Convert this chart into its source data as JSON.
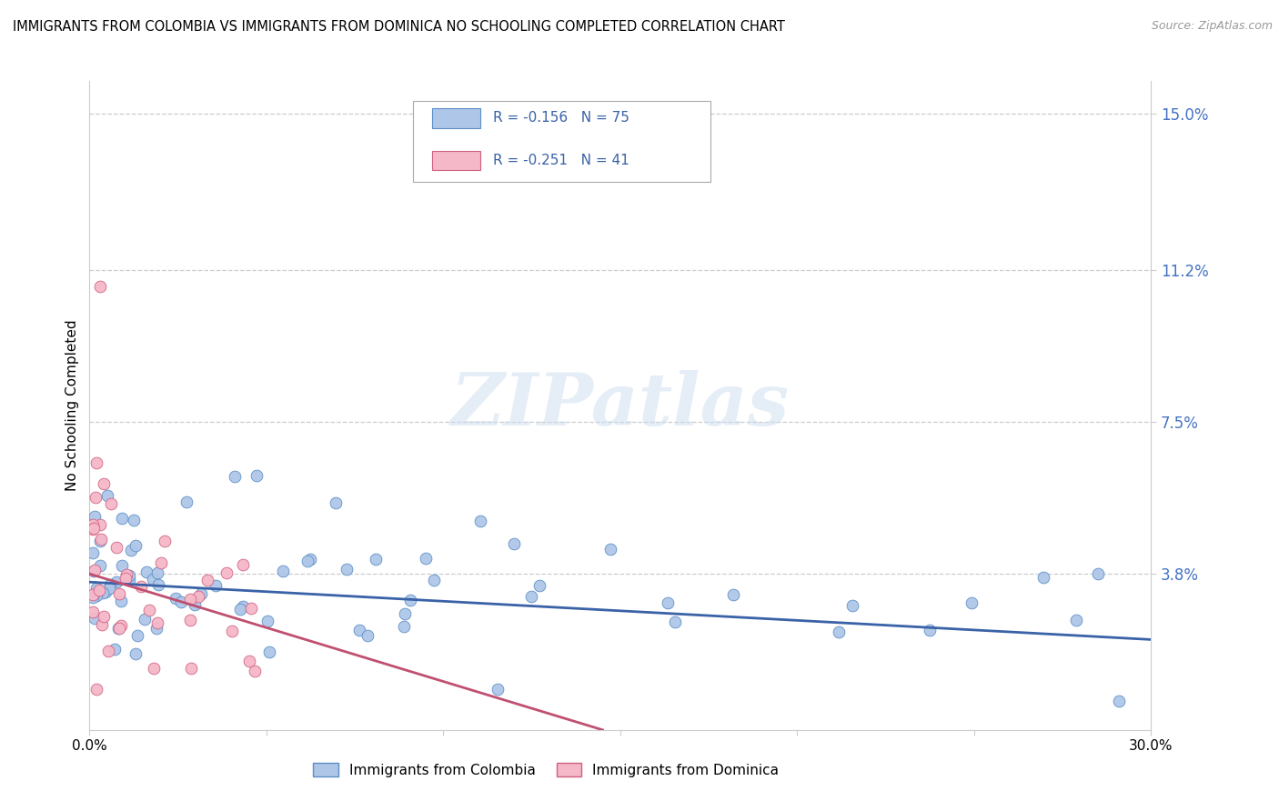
{
  "title": "IMMIGRANTS FROM COLOMBIA VS IMMIGRANTS FROM DOMINICA NO SCHOOLING COMPLETED CORRELATION CHART",
  "source": "Source: ZipAtlas.com",
  "ylabel": "No Schooling Completed",
  "xlim": [
    0.0,
    0.3
  ],
  "ylim": [
    0.0,
    0.158
  ],
  "yticks": [
    0.038,
    0.075,
    0.112,
    0.15
  ],
  "ytick_labels": [
    "3.8%",
    "7.5%",
    "11.2%",
    "15.0%"
  ],
  "xticks": [
    0.0,
    0.05,
    0.1,
    0.15,
    0.2,
    0.25,
    0.3
  ],
  "xtick_labels": [
    "0.0%",
    "",
    "",
    "",
    "",
    "",
    "30.0%"
  ],
  "colombia_color": "#aec6e8",
  "colombia_edge_color": "#5b8ec4",
  "dominica_color": "#f5b8c8",
  "dominica_edge_color": "#d06080",
  "colombia_line_color": "#3a62a7",
  "dominica_line_color": "#c05070",
  "R_colombia": -0.156,
  "N_colombia": 75,
  "R_dominica": -0.251,
  "N_dominica": 41,
  "watermark": "ZIPatlas",
  "colombia_trend_x": [
    0.0,
    0.3
  ],
  "colombia_trend_y": [
    0.036,
    0.022
  ],
  "dominica_trend_x": [
    0.0,
    0.145
  ],
  "dominica_trend_y": [
    0.038,
    0.0
  ]
}
